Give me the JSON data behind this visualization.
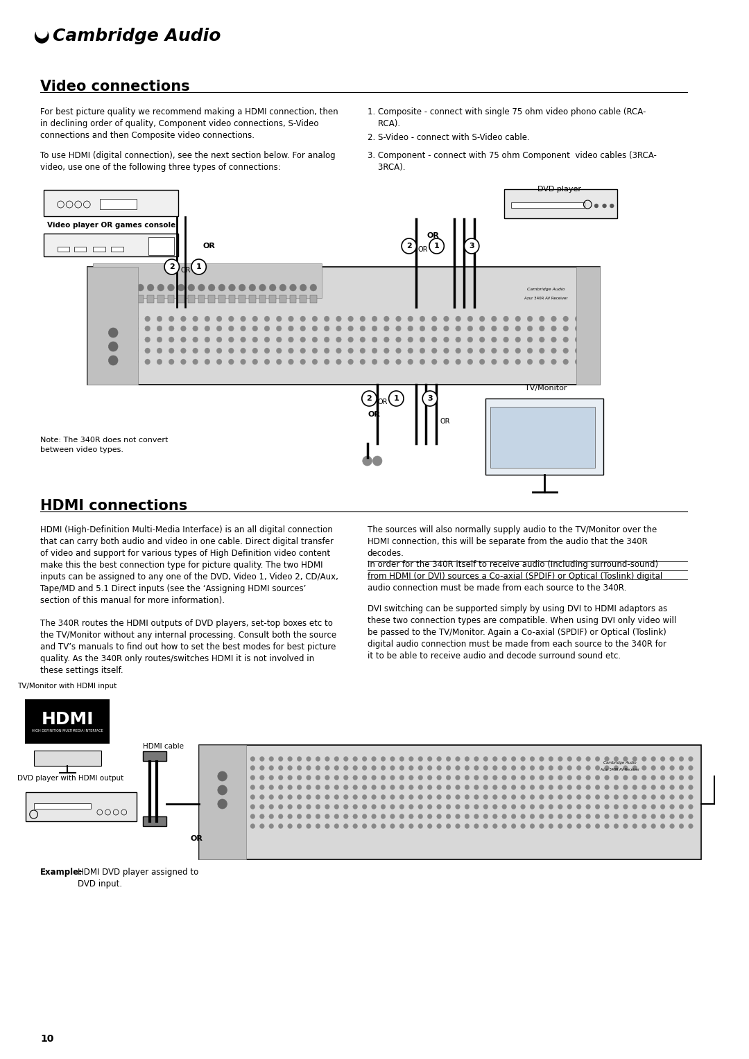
{
  "page_bg": "#ffffff",
  "logo_text": "Cambridge Audio",
  "page_number": "10",
  "section1_title": "Video connections",
  "section1_para1": "For best picture quality we recommend making a HDMI connection, then\nin declining order of quality, Component video connections, S-Video\nconnections and then Composite video connections.",
  "section1_para2": "To use HDMI (digital connection), see the next section below. For analog\nvideo, use one of the following three types of connections:",
  "section1_list": [
    "1. Composite - connect with single 75 ohm video phono cable (RCA-\n    RCA).",
    "2. S-Video - connect with S-Video cable.",
    "3. Component - connect with 75 ohm Component  video cables (3RCA-\n    3RCA)."
  ],
  "note_text": "Note: The 340R does not convert\nbetween video types.",
  "section2_title": "HDMI connections",
  "section2_para1": "HDMI (High-Definition Multi-Media Interface) is an all digital connection\nthat can carry both audio and video in one cable. Direct digital transfer\nof video and support for various types of High Definition video content\nmake this the best connection type for picture quality. The two HDMI\ninputs can be assigned to any one of the DVD, Video 1, Video 2, CD/Aux,\nTape/MD and 5.1 Direct inputs (see the ‘Assigning HDMI sources’\nsection of this manual for more information).",
  "section2_para2": "The 340R routes the HDMI outputs of DVD players, set-top boxes etc to\nthe TV/Monitor without any internal processing. Consult both the source\nand TV’s manuals to find out how to set the best modes for best picture\nquality. As the 340R only routes/switches HDMI it is not involved in\nthese settings itself.",
  "section2_para3": "The sources will also normally supply audio to the TV/Monitor over the\nHDMI connection, this will be separate from the audio that the 340R\ndecodes.",
  "section2_para4_underline": "In order for the 340R itself to receive audio (Including surround-sound)\nfrom HDMI (or DVI) sources a Co-axial (SPDIF) or Optical (Toslink) digital\naudio connection must be made from each source to the 340R.",
  "section2_para5": "DVI switching can be supported simply by using DVI to HDMI adaptors as\nthese two connection types are compatible. When using DVI only video will\nbe passed to the TV/Monitor. Again a Co-axial (SPDIF) or Optical (Toslink)\ndigital audio connection must be made from each source to the 340R for\nit to be able to receive audio and decode surround sound etc.",
  "label_tv_monitor_hdmi": "TV/Monitor with HDMI input",
  "label_hdmi_cable": "HDMI cable",
  "label_dvd_hdmi_output": "DVD player with HDMI output",
  "label_or": "OR",
  "example_text": "HDMI DVD player assigned to\nDVD input.",
  "body_fontsize": 8.5,
  "note_fontsize": 8,
  "section_title_fontsize": 15
}
